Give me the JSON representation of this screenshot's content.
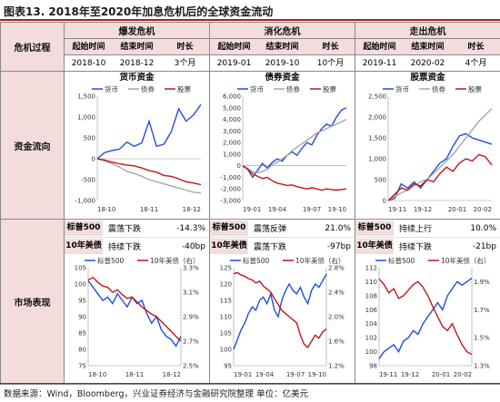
{
  "title": "图表13. 2018年至2020年加息危机后的全球资金流动",
  "footer": "数据来源：Wind，Bloomberg，兴业证券经济与金融研究院整理  单位：亿美元",
  "row_labels": {
    "crisis": "危机过程",
    "flow": "资金流向",
    "market": "市场表现"
  },
  "crises": [
    {
      "name": "爆发危机",
      "h_start": "起始时间",
      "h_end": "结束时间",
      "h_len": "时长",
      "start": "2018-10",
      "end": "2018-12",
      "len": "3个月"
    },
    {
      "name": "消化危机",
      "h_start": "起始时间",
      "h_end": "结束时间",
      "h_len": "时长",
      "start": "2019-01",
      "end": "2019-10",
      "len": "10个月"
    },
    {
      "name": "走出危机",
      "h_start": "起始时间",
      "h_end": "结束时间",
      "h_len": "时长",
      "start": "2019-11",
      "end": "2020-02",
      "len": "4个月"
    }
  ],
  "flow_titles": [
    "货币资金",
    "债券资金",
    "股票资金"
  ],
  "legend": {
    "currency": "货币",
    "bond": "债券",
    "stock": "股票",
    "sp500": "标普500",
    "ust10": "10年美债（右）"
  },
  "stats": [
    {
      "r1": [
        "标普500",
        "震荡下跌",
        "-14.3%"
      ],
      "r2": [
        "10年美债",
        "持续下跌",
        "-40bp"
      ]
    },
    {
      "r1": [
        "标普500",
        "震荡反弹",
        "21.0%"
      ],
      "r2": [
        "10年美债",
        "震荡下跌",
        "-97bp"
      ]
    },
    {
      "r1": [
        "标普500",
        "持续上行",
        "10.0%"
      ],
      "r2": [
        "10年美债",
        "持续下跌",
        "-21bp"
      ]
    }
  ],
  "colors": {
    "currency": "#1f4fd8",
    "bond": "#a6a6a6",
    "stock": "#c0161b",
    "sp500": "#1f4fd8",
    "ust10": "#c0161b"
  },
  "chart_data": [
    {
      "type": "line",
      "id": "flow1",
      "xticks": [
        "18-10",
        "18-11",
        "18-12"
      ],
      "ylim": [
        -1000,
        1500
      ],
      "yticks": [
        -1000,
        -500,
        0,
        500,
        1000,
        1500
      ],
      "yticklabels": [
        "-1,000",
        "-500",
        "0",
        "500",
        "1,000",
        "1,500"
      ],
      "series": [
        {
          "name": "货币",
          "color": "#1f4fd8",
          "values": [
            0,
            150,
            200,
            230,
            400,
            300,
            380,
            900,
            300,
            350,
            650,
            1200,
            900,
            1050,
            1300
          ]
        },
        {
          "name": "债券",
          "color": "#a6a6a6",
          "values": [
            0,
            -50,
            -120,
            -200,
            -300,
            -350,
            -420,
            -500,
            -550,
            -600,
            -650,
            -700,
            -750,
            -800,
            -820
          ]
        },
        {
          "name": "股票",
          "color": "#c0161b",
          "values": [
            0,
            -30,
            -80,
            -120,
            -150,
            -170,
            -220,
            -280,
            -320,
            -400,
            -420,
            -480,
            -550,
            -580,
            -620
          ]
        }
      ]
    },
    {
      "type": "line",
      "id": "flow2",
      "xticks": [
        "19-01",
        "19-04",
        "19-07",
        "19-10"
      ],
      "ylim": [
        -3000,
        6000
      ],
      "yticks": [
        -3000,
        -2000,
        -1000,
        0,
        1000,
        2000,
        3000,
        4000,
        5000,
        6000
      ],
      "yticklabels": [
        "-3,000",
        "-2,000",
        "-1,000",
        "0",
        "1,000",
        "2,000",
        "3,000",
        "4,000",
        "5,000",
        "6,000"
      ],
      "series": [
        {
          "name": "货币",
          "color": "#1f4fd8",
          "values": [
            0,
            -300,
            -1000,
            -400,
            200,
            -200,
            300,
            600,
            400,
            900,
            1200,
            900,
            1500,
            2000,
            1800,
            2600,
            3200,
            3600,
            3400,
            4200,
            4800,
            5000
          ]
        },
        {
          "name": "债券",
          "color": "#a6a6a6",
          "values": [
            0,
            -200,
            -500,
            -600,
            -500,
            -300,
            100,
            300,
            600,
            900,
            1300,
            1600,
            1900,
            2200,
            2500,
            2800,
            3000,
            3200,
            3400,
            3600,
            3800,
            4000
          ]
        },
        {
          "name": "股票",
          "color": "#c0161b",
          "values": [
            0,
            -300,
            -700,
            -900,
            -1100,
            -1000,
            -1300,
            -1500,
            -1600,
            -1700,
            -1650,
            -1800,
            -1900,
            -2000,
            -1900,
            -2000,
            -2100,
            -2000,
            -2050,
            -2100,
            -2050,
            -2000
          ]
        }
      ]
    },
    {
      "type": "line",
      "id": "flow3",
      "xticks": [
        "19-11",
        "19-12",
        "20-01",
        "20-02"
      ],
      "ylim": [
        0,
        2500
      ],
      "yticks": [
        0,
        500,
        1000,
        1500,
        2000,
        2500
      ],
      "yticklabels": [
        "0",
        "500",
        "1,000",
        "1,500",
        "2,000",
        "2,500"
      ],
      "series": [
        {
          "name": "货币",
          "color": "#1f4fd8",
          "values": [
            0,
            50,
            400,
            300,
            450,
            300,
            500,
            700,
            900,
            1000,
            1300,
            1550,
            1600,
            1500,
            1450,
            1400,
            1350
          ]
        },
        {
          "name": "债券",
          "color": "#a6a6a6",
          "values": [
            0,
            100,
            180,
            250,
            350,
            450,
            500,
            650,
            800,
            950,
            1100,
            1300,
            1500,
            1700,
            1900,
            2050,
            2200
          ]
        },
        {
          "name": "股票",
          "color": "#c0161b",
          "values": [
            0,
            150,
            300,
            250,
            400,
            350,
            500,
            450,
            650,
            800,
            700,
            900,
            1000,
            950,
            1100,
            1050,
            850
          ]
        }
      ]
    },
    {
      "type": "line",
      "id": "mkt1",
      "dual_axis": true,
      "xticks": [
        "18-10",
        "18-11",
        "18-12"
      ],
      "ylim": [
        75,
        105
      ],
      "yticks": [
        75,
        80,
        85,
        90,
        95,
        100,
        105
      ],
      "yticklabels": [
        "75",
        "80",
        "85",
        "90",
        "95",
        "100",
        "105"
      ],
      "y2lim": [
        2.5,
        3.3
      ],
      "y2ticks": [
        2.5,
        2.7,
        2.9,
        3.1,
        3.3
      ],
      "y2ticklabels": [
        "2.5%",
        "2.7%",
        "2.9%",
        "3.1%",
        "3.3%"
      ],
      "series": [
        {
          "name": "标普500",
          "axis": "left",
          "color": "#1f4fd8",
          "values": [
            101,
            99,
            97,
            95,
            96,
            94,
            97,
            95,
            93,
            96,
            94,
            95,
            91,
            88,
            90,
            86,
            84,
            83,
            81,
            84
          ]
        },
        {
          "name": "10年美债（右）",
          "axis": "right",
          "color": "#c0161b",
          "values": [
            3.2,
            3.22,
            3.18,
            3.15,
            3.14,
            3.1,
            3.12,
            3.08,
            3.05,
            3.06,
            3.02,
            2.98,
            2.95,
            2.92,
            2.9,
            2.86,
            2.82,
            2.78,
            2.74,
            2.7
          ]
        }
      ]
    },
    {
      "type": "line",
      "id": "mkt2",
      "dual_axis": true,
      "xticks": [
        "19-01",
        "19-04",
        "19-07",
        "19-10"
      ],
      "ylim": [
        95,
        125
      ],
      "yticks": [
        95,
        100,
        105,
        110,
        115,
        120,
        125
      ],
      "yticklabels": [
        "95",
        "100",
        "105",
        "110",
        "115",
        "120",
        "125"
      ],
      "y2lim": [
        1.2,
        2.8
      ],
      "y2ticks": [
        1.2,
        1.6,
        2.0,
        2.4,
        2.8
      ],
      "y2ticklabels": [
        "1.2%",
        "1.6%",
        "2.0%",
        "2.4%",
        "2.8%"
      ],
      "series": [
        {
          "name": "标普500",
          "axis": "left",
          "color": "#1f4fd8",
          "values": [
            100,
            103,
            106,
            108,
            111,
            113,
            112,
            115,
            116,
            114,
            117,
            112,
            110,
            115,
            118,
            120,
            118,
            117,
            119,
            116,
            114,
            118,
            120,
            119,
            121,
            123
          ]
        },
        {
          "name": "10年美债（右）",
          "axis": "right",
          "color": "#c0161b",
          "values": [
            2.7,
            2.72,
            2.68,
            2.66,
            2.62,
            2.6,
            2.55,
            2.58,
            2.5,
            2.45,
            2.4,
            2.3,
            2.2,
            2.1,
            2.05,
            2.0,
            1.95,
            1.9,
            1.7,
            1.55,
            1.5,
            1.6,
            1.7,
            1.65,
            1.75,
            1.8
          ]
        }
      ]
    },
    {
      "type": "line",
      "id": "mkt3",
      "dual_axis": true,
      "xticks": [
        "19-11",
        "19-12",
        "20-01",
        "20-02"
      ],
      "ylim": [
        98,
        112
      ],
      "yticks": [
        98,
        100,
        102,
        104,
        106,
        108,
        110,
        112
      ],
      "yticklabels": [
        "98",
        "100",
        "102",
        "104",
        "106",
        "108",
        "110",
        "112"
      ],
      "y2lim": [
        1.3,
        2.0
      ],
      "y2ticks": [
        1.3,
        1.5,
        1.7,
        1.9
      ],
      "y2ticklabels": [
        "1.3%",
        "1.5%",
        "1.7%",
        "1.9%"
      ],
      "y2ticks_extra": [
        2.0
      ],
      "series": [
        {
          "name": "标普500",
          "axis": "left",
          "color": "#1f4fd8",
          "values": [
            99,
            100,
            100.5,
            101,
            100,
            101.5,
            102,
            103,
            102.5,
            104,
            105,
            106,
            107,
            106,
            108,
            109,
            110,
            109.5,
            110,
            110.5
          ]
        },
        {
          "name": "10年美债（右）",
          "axis": "right",
          "color": "#c0161b",
          "values": [
            1.92,
            1.88,
            1.82,
            1.85,
            1.78,
            1.8,
            1.84,
            1.88,
            1.9,
            1.86,
            1.8,
            1.72,
            1.65,
            1.58,
            1.55,
            1.6,
            1.52,
            1.45,
            1.4,
            1.38
          ]
        }
      ]
    }
  ]
}
